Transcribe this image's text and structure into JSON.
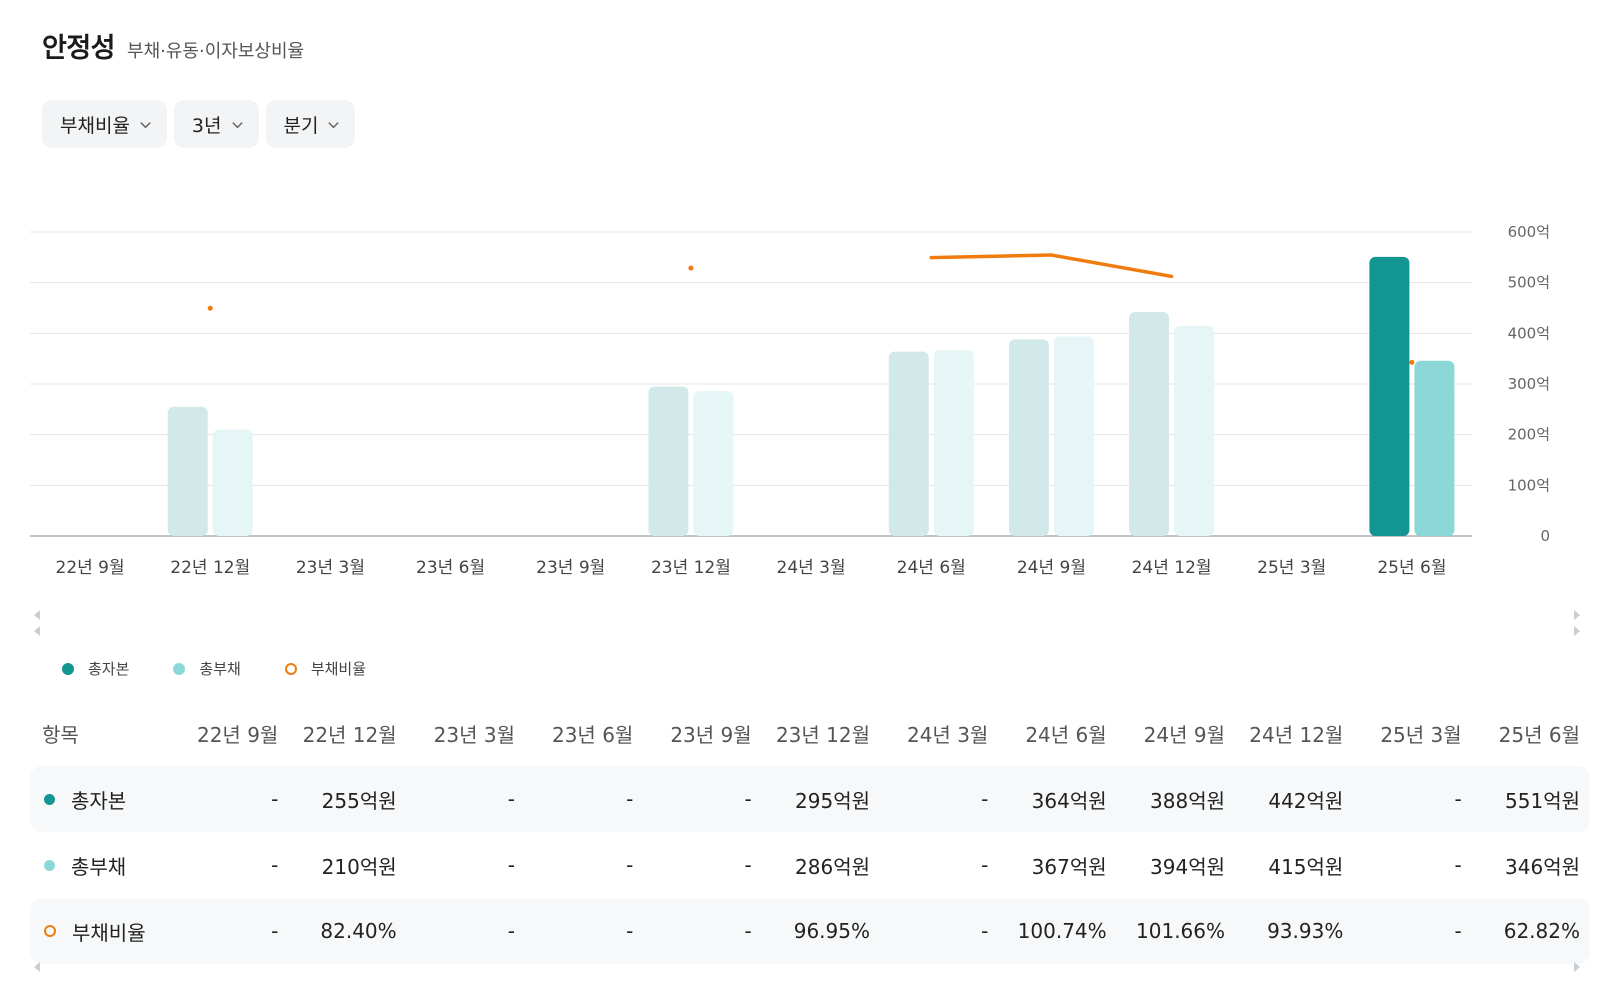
{
  "header": {
    "title": "안정성",
    "subtitle": "부채·유동·이자보상비율"
  },
  "filters": [
    {
      "label": "부채비율"
    },
    {
      "label": "3년"
    },
    {
      "label": "분기"
    }
  ],
  "colors": {
    "equity": "#139692",
    "equity_faded": "#d2e9ea",
    "debt": "#8cd8d8",
    "debt_faded": "#e6f6f6",
    "ratio": "#f07c10",
    "grid": "#e2e5e8",
    "axis": "#9aa1a8"
  },
  "chart_data": {
    "type": "bar",
    "categories": [
      "22년 9월",
      "22년 12월",
      "23년 3월",
      "23년 6월",
      "23년 9월",
      "23년 12월",
      "24년 3월",
      "24년 6월",
      "24년 9월",
      "24년 12월",
      "25년 3월",
      "25년 6월"
    ],
    "series": [
      {
        "name": "총자본",
        "unit": "억",
        "values": [
          null,
          255,
          null,
          null,
          null,
          295,
          null,
          364,
          388,
          442,
          null,
          551
        ]
      },
      {
        "name": "총부채",
        "unit": "억",
        "values": [
          null,
          210,
          null,
          null,
          null,
          286,
          null,
          367,
          394,
          415,
          null,
          346
        ]
      },
      {
        "name": "부채비율",
        "type": "line",
        "unit": "%",
        "values": [
          null,
          82.4,
          null,
          null,
          null,
          96.95,
          null,
          100.74,
          101.66,
          93.93,
          null,
          62.82
        ]
      }
    ],
    "y_ticks": [
      "600억",
      "500억",
      "400억",
      "300억",
      "200억",
      "100억",
      "0"
    ],
    "ylim": [
      0,
      600
    ],
    "y2lim": [
      0,
      110
    ],
    "highlight_index": 11,
    "grid": true
  },
  "legend": [
    {
      "label": "총자본"
    },
    {
      "label": "총부채"
    },
    {
      "label": "부채비율"
    }
  ],
  "table": {
    "header_label": "항목",
    "columns": [
      "22년 9월",
      "22년 12월",
      "23년 3월",
      "23년 6월",
      "23년 9월",
      "23년 12월",
      "24년 3월",
      "24년 6월",
      "24년 9월",
      "24년 12월",
      "25년 3월",
      "25년 6월"
    ],
    "rows": [
      {
        "label": "총자본",
        "values": [
          "-",
          "255억원",
          "-",
          "-",
          "-",
          "295억원",
          "-",
          "364억원",
          "388억원",
          "442억원",
          "-",
          "551억원"
        ]
      },
      {
        "label": "총부채",
        "values": [
          "-",
          "210억원",
          "-",
          "-",
          "-",
          "286억원",
          "-",
          "367억원",
          "394억원",
          "415억원",
          "-",
          "346억원"
        ]
      },
      {
        "label": "부채비율",
        "values": [
          "-",
          "82.40%",
          "-",
          "-",
          "-",
          "96.95%",
          "-",
          "100.74%",
          "101.66%",
          "93.93%",
          "-",
          "62.82%"
        ]
      }
    ]
  }
}
